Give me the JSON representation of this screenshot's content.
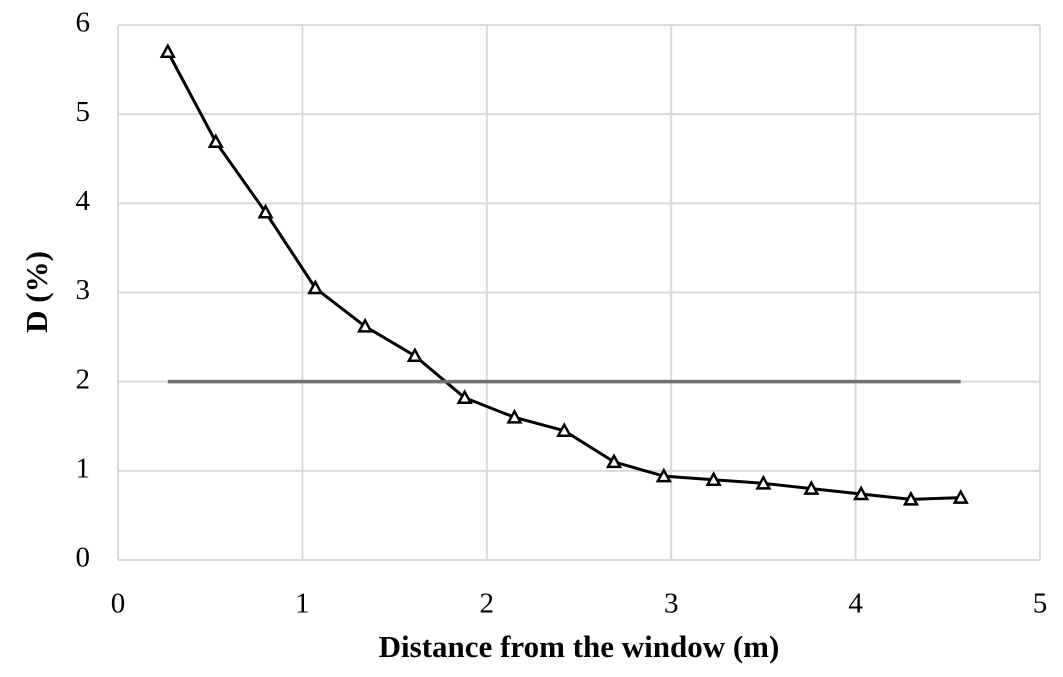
{
  "chart_data": {
    "type": "line",
    "x_label": "Distance from the window (m)",
    "y_label": "D (%)",
    "xlim": [
      0,
      5
    ],
    "xticks": [
      0,
      1,
      2,
      3,
      4,
      5
    ],
    "ylim": [
      0,
      6
    ],
    "yticks": [
      0,
      1,
      2,
      3,
      4,
      5,
      6
    ],
    "grid": true,
    "series": [
      {
        "color": "#000000",
        "marker": "triangle",
        "x": [
          0.27,
          0.53,
          0.8,
          1.07,
          1.34,
          1.61,
          1.88,
          2.15,
          2.42,
          2.69,
          2.96,
          3.23,
          3.5,
          3.76,
          4.03,
          4.3,
          4.57
        ],
        "values": [
          5.7,
          4.69,
          3.9,
          3.05,
          2.62,
          2.29,
          1.82,
          1.6,
          1.45,
          1.1,
          0.94,
          0.9,
          0.86,
          0.8,
          0.74,
          0.68,
          0.7
        ]
      },
      {
        "color": "#707070",
        "x": [
          0.27,
          4.57
        ],
        "values": [
          2,
          2
        ]
      }
    ]
  }
}
